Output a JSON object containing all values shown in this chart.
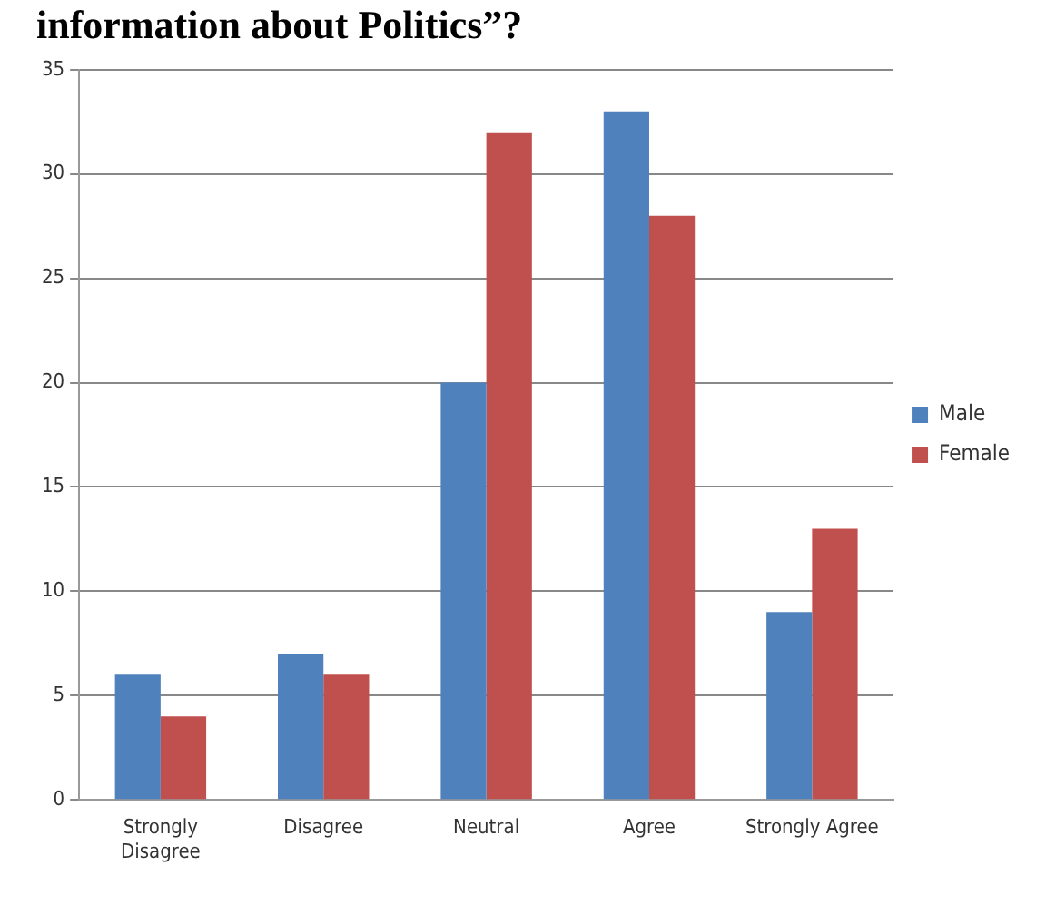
{
  "chart_data": {
    "type": "bar",
    "title": "information about Politics”?",
    "categories": [
      "Strongly Disagree",
      "Disagree",
      "Neutral",
      "Agree",
      "Strongly Agree"
    ],
    "series": [
      {
        "name": "Male",
        "color": "#4f81bd",
        "values": [
          6,
          7,
          20,
          33,
          9
        ]
      },
      {
        "name": "Female",
        "color": "#c0504d",
        "values": [
          4,
          6,
          32,
          28,
          13
        ]
      }
    ],
    "ylim": [
      0,
      35
    ],
    "yticks": [
      0,
      5,
      10,
      15,
      20,
      25,
      30,
      35
    ],
    "grid": "y",
    "legend": "right"
  }
}
